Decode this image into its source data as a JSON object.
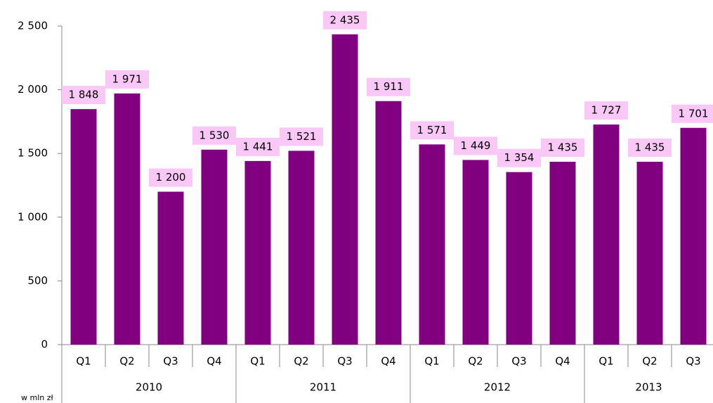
{
  "chart_data": {
    "type": "bar",
    "groups": [
      {
        "name": "2010",
        "categories": [
          "Q1",
          "Q2",
          "Q3",
          "Q4"
        ]
      },
      {
        "name": "2011",
        "categories": [
          "Q1",
          "Q2",
          "Q3",
          "Q4"
        ]
      },
      {
        "name": "2012",
        "categories": [
          "Q1",
          "Q2",
          "Q3",
          "Q4"
        ]
      },
      {
        "name": "2013",
        "categories": [
          "Q1",
          "Q2",
          "Q3"
        ]
      }
    ],
    "values": [
      1848,
      1971,
      1200,
      1530,
      1441,
      1521,
      2435,
      1911,
      1571,
      1449,
      1354,
      1435,
      1727,
      1435,
      1701
    ],
    "value_labels": [
      "1 848",
      "1 971",
      "1 200",
      "1 530",
      "1 441",
      "1 521",
      "2 435",
      "1 911",
      "1 571",
      "1 449",
      "1 354",
      "1 435",
      "1 727",
      "1 435",
      "1 701"
    ],
    "color": "#800080",
    "label_background": "#f9c8f6",
    "ylim": [
      0,
      2500
    ],
    "yticks": [
      0,
      500,
      {
        "value": 1000,
        "label": "1 000"
      },
      {
        "value": 1500,
        "label": "1 500"
      },
      {
        "value": 2000,
        "label": "2 000"
      },
      {
        "value": 2500,
        "label": "2 500"
      }
    ],
    "unit_label": "w mln zł"
  }
}
